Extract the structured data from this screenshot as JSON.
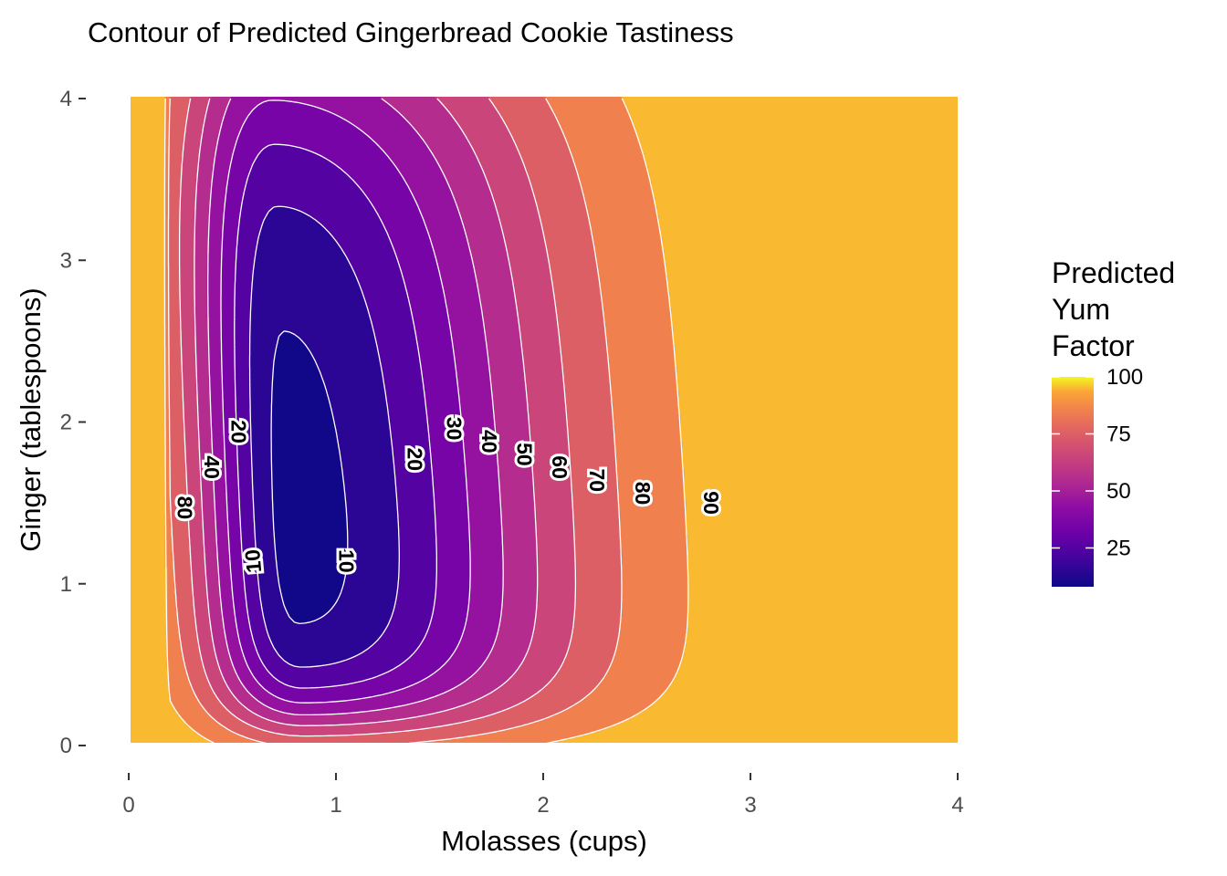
{
  "chart_data": {
    "type": "heatmap",
    "subtype": "filled-contour",
    "title": "Contour of Predicted Gingerbread Cookie Tastiness",
    "xlabel": "Molasses (cups)",
    "ylabel": "Ginger (tablespoons)",
    "xlim": [
      0,
      4
    ],
    "ylim": [
      0,
      4
    ],
    "x_ticks": [
      "0",
      "1",
      "2",
      "3",
      "4"
    ],
    "y_ticks": [
      "0",
      "1",
      "2",
      "3",
      "4"
    ],
    "grid": false,
    "legend": {
      "title_lines": [
        "Predicted",
        "Yum",
        "Factor"
      ],
      "position": "right",
      "min": 8,
      "max": 100,
      "breaks": [
        "25",
        "50",
        "75",
        "100"
      ],
      "colorscale": "plasma"
    },
    "contour_levels": [
      10,
      20,
      30,
      40,
      50,
      60,
      70,
      80,
      90
    ],
    "contour_labels": [
      {
        "text": "80",
        "x": 0.27,
        "y": 1.47,
        "rot": 90
      },
      {
        "text": "40",
        "x": 0.4,
        "y": 1.72,
        "rot": 90
      },
      {
        "text": "20",
        "x": 0.53,
        "y": 1.94,
        "rot": 90
      },
      {
        "text": "10",
        "x": 0.6,
        "y": 1.14,
        "rot": -95
      },
      {
        "text": "10",
        "x": 1.05,
        "y": 1.14,
        "rot": 90
      },
      {
        "text": "20",
        "x": 1.38,
        "y": 1.77,
        "rot": 90
      },
      {
        "text": "30",
        "x": 1.57,
        "y": 1.96,
        "rot": 90
      },
      {
        "text": "40",
        "x": 1.74,
        "y": 1.88,
        "rot": 90
      },
      {
        "text": "50",
        "x": 1.91,
        "y": 1.8,
        "rot": 90
      },
      {
        "text": "60",
        "x": 2.08,
        "y": 1.72,
        "rot": 90
      },
      {
        "text": "70",
        "x": 2.26,
        "y": 1.64,
        "rot": 90
      },
      {
        "text": "80",
        "x": 2.48,
        "y": 1.56,
        "rot": 90
      },
      {
        "text": "90",
        "x": 2.81,
        "y": 1.5,
        "rot": 90
      }
    ]
  }
}
